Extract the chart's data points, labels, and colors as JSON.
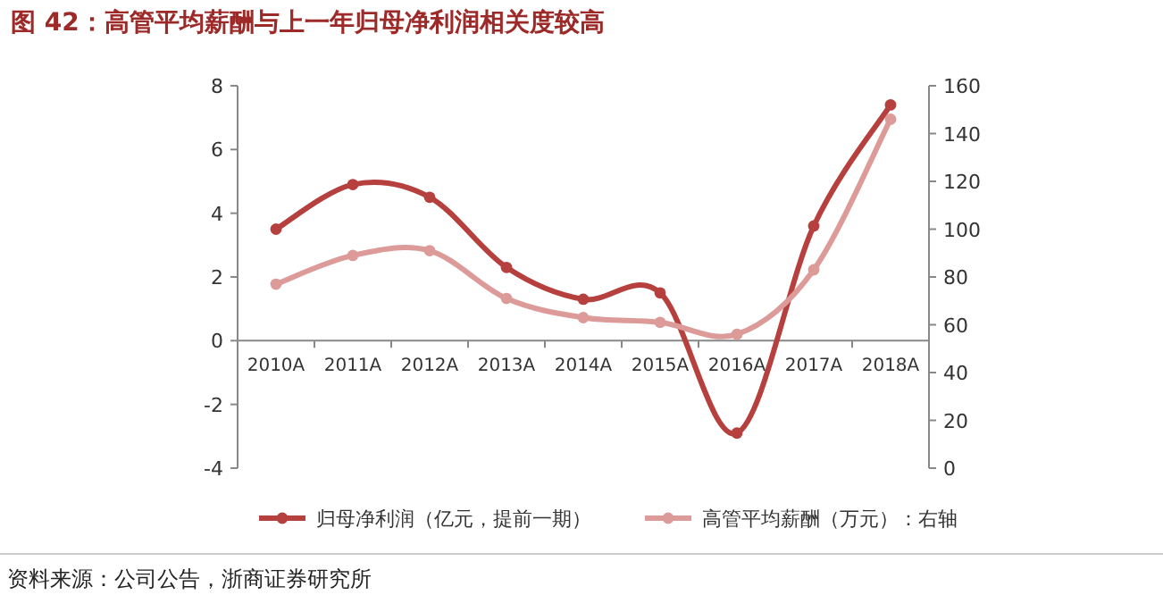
{
  "chart_data": {
    "type": "line",
    "title": "图 42：高管平均薪酬与上一年归母净利润相关度较高",
    "categories": [
      "2010A",
      "2011A",
      "2012A",
      "2013A",
      "2014A",
      "2015A",
      "2016A",
      "2017A",
      "2018A"
    ],
    "series": [
      {
        "name": "归母净利润（亿元，提前一期）",
        "color": "#b5403e",
        "values": [
          3.5,
          4.9,
          4.5,
          2.3,
          1.3,
          1.5,
          -2.9,
          3.6,
          7.4
        ]
      },
      {
        "name": "高管平均薪酬（万元）：右轴",
        "color": "#dc9a98",
        "axis": "y2",
        "values": [
          77,
          89,
          91,
          71,
          63,
          61,
          56,
          83,
          146
        ]
      }
    ],
    "ylim": [
      -4,
      8
    ],
    "yticks": [
      -4,
      -2,
      0,
      2,
      4,
      6,
      8
    ],
    "y2lim": [
      0,
      160
    ],
    "y2ticks": [
      0,
      20,
      40,
      60,
      80,
      100,
      120,
      140,
      160
    ],
    "marker": "circle",
    "line_style": "solid",
    "legend": "bottom",
    "grid": false,
    "annotations": [
      "资料来源：公司公告，浙商证券研究所"
    ]
  }
}
